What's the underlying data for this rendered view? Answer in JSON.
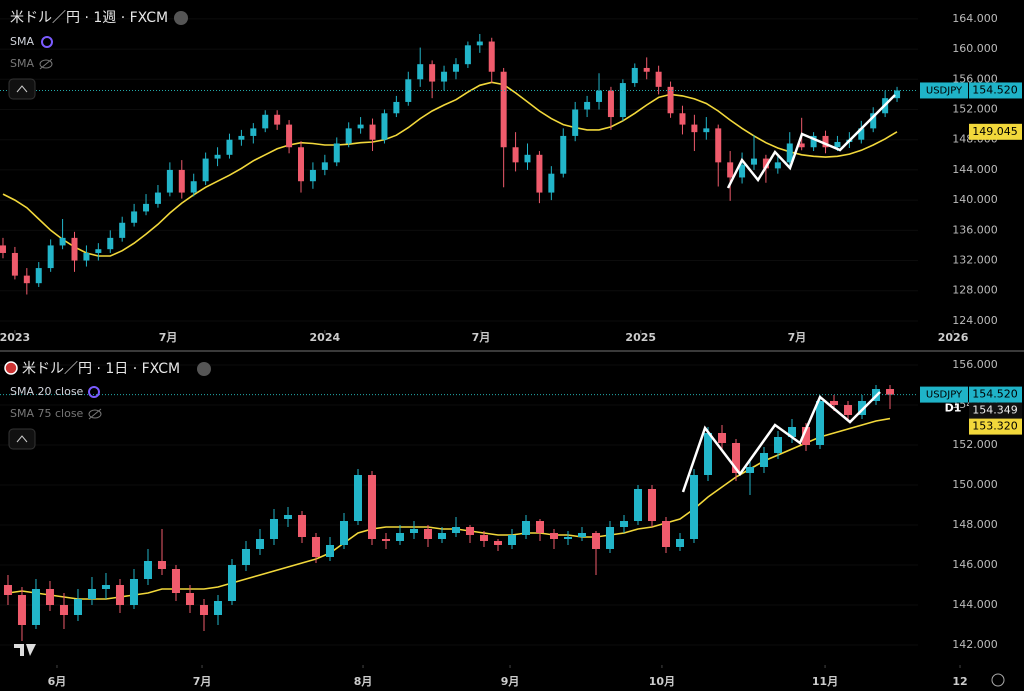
{
  "chart_data": [
    {
      "type": "candlestick",
      "title": "米ドル／円 · 1週 · FXCM",
      "up_color": "#22b5c9",
      "down_color": "#ef5b6c",
      "symbol": "USDJPY",
      "last": {
        "value": 154.52,
        "label": "154.520"
      },
      "indicators": [
        {
          "name": "SMA",
          "color": "#f2d83b",
          "label": {
            "value": 149.045,
            "label": "149.045"
          },
          "values": [
            140.8,
            140,
            139,
            137.5,
            136,
            134.8,
            133.8,
            133,
            132.6,
            132.6,
            133.3,
            134.3,
            135.5,
            136.8,
            138.3,
            139.6,
            140.7,
            141.7,
            142.5,
            143.3,
            144.2,
            145.2,
            146,
            146.8,
            147.3,
            147.6,
            147.5,
            147.3,
            147.3,
            147.4,
            147.6,
            147.7,
            148,
            148.6,
            149.6,
            150.8,
            151.8,
            152.6,
            153.3,
            154.3,
            155.2,
            155.6,
            155.3,
            154.2,
            153,
            151.8,
            150.8,
            150,
            149.6,
            149.3,
            149.3,
            149.7,
            150.5,
            151.5,
            152.6,
            153.6,
            154,
            153.8,
            153.4,
            152.8,
            151.8,
            150.6,
            149.5,
            148.5,
            147.6,
            146.9,
            146.4,
            146,
            145.8,
            145.7,
            145.8,
            146.1,
            146.6,
            147.3,
            148.1,
            149.045
          ]
        },
        {
          "name": "SMA",
          "visible": false
        }
      ],
      "ylim": [
        122.8,
        166.5
      ],
      "yticks": [
        {
          "value": 124,
          "label": "124.000"
        },
        {
          "value": 128,
          "label": "128.000"
        },
        {
          "value": 132,
          "label": "132.000"
        },
        {
          "value": 136,
          "label": "136.000"
        },
        {
          "value": 140,
          "label": "140.000"
        },
        {
          "value": 144,
          "label": "144.000"
        },
        {
          "value": 148,
          "label": "148.000"
        },
        {
          "value": 152,
          "label": "152.000"
        },
        {
          "value": 156,
          "label": "156.000"
        },
        {
          "value": 160,
          "label": "160.000"
        },
        {
          "value": 164,
          "label": "164.000"
        }
      ],
      "xlim": [
        -0.25,
        85.65
      ],
      "xticks": [
        {
          "value": 1.0,
          "label": "2023"
        },
        {
          "value": 13.85,
          "label": "7月"
        },
        {
          "value": 27.0,
          "label": "2024"
        },
        {
          "value": 40.1,
          "label": "7月"
        },
        {
          "value": 53.5,
          "label": "2025"
        },
        {
          "value": 66.6,
          "label": "7月"
        },
        {
          "value": 79.7,
          "label": "2026"
        }
      ],
      "ohlc": [
        [
          134,
          135,
          132.3,
          133
        ],
        [
          133,
          133.8,
          129.5,
          130
        ],
        [
          130,
          131,
          127.5,
          129
        ],
        [
          129,
          131.8,
          128.5,
          131
        ],
        [
          131,
          134.8,
          130.5,
          134
        ],
        [
          134,
          137.5,
          133.5,
          135
        ],
        [
          135,
          135.8,
          130.5,
          132
        ],
        [
          132,
          134,
          131.2,
          133
        ],
        [
          133,
          134.3,
          132,
          133.5
        ],
        [
          133.5,
          136,
          133,
          135
        ],
        [
          135,
          137.8,
          134.5,
          137
        ],
        [
          137,
          139.5,
          136.5,
          138.5
        ],
        [
          138.5,
          140.8,
          138,
          139.5
        ],
        [
          139.5,
          142,
          139,
          141
        ],
        [
          141,
          145,
          140.5,
          144
        ],
        [
          144,
          145.3,
          140.2,
          141
        ],
        [
          141,
          143.5,
          140.5,
          142.5
        ],
        [
          142.5,
          146.3,
          142,
          145.5
        ],
        [
          145.5,
          147,
          144.5,
          146
        ],
        [
          146,
          148.8,
          145.5,
          148
        ],
        [
          148,
          149.3,
          147.2,
          148.5
        ],
        [
          148.5,
          150.2,
          147.5,
          149.5
        ],
        [
          149.5,
          151.9,
          149,
          151.3
        ],
        [
          151.3,
          151.9,
          149.3,
          150
        ],
        [
          150,
          150.6,
          146.2,
          147
        ],
        [
          147,
          147.8,
          141,
          142.5
        ],
        [
          142.5,
          145,
          141.5,
          144
        ],
        [
          144,
          146,
          143.3,
          145
        ],
        [
          145,
          148.3,
          144.5,
          147.5
        ],
        [
          147.5,
          150.3,
          147,
          149.5
        ],
        [
          149.5,
          151,
          148.8,
          150
        ],
        [
          150,
          150.8,
          146.5,
          148
        ],
        [
          148,
          152,
          147.5,
          151.5
        ],
        [
          151.5,
          153.8,
          151,
          153
        ],
        [
          153,
          157,
          152.5,
          156
        ],
        [
          156,
          160.2,
          155,
          158
        ],
        [
          158,
          158.5,
          153.5,
          155.7
        ],
        [
          155.7,
          157.8,
          154.5,
          157
        ],
        [
          157,
          158.8,
          156,
          158
        ],
        [
          158,
          161,
          157.5,
          160.5
        ],
        [
          160.5,
          162,
          159.5,
          161
        ],
        [
          161,
          161.5,
          155.5,
          157
        ],
        [
          157,
          157.5,
          141.7,
          147
        ],
        [
          147,
          149,
          143.8,
          145
        ],
        [
          145,
          147.5,
          144,
          146
        ],
        [
          146,
          146.5,
          139.6,
          141
        ],
        [
          141,
          144.5,
          140,
          143.5
        ],
        [
          143.5,
          149.5,
          143,
          148.5
        ],
        [
          148.5,
          153,
          147.8,
          152
        ],
        [
          152,
          153.8,
          151,
          153
        ],
        [
          153,
          156.8,
          152,
          154.5
        ],
        [
          154.5,
          155,
          149.3,
          151
        ],
        [
          151,
          156,
          150.5,
          155.5
        ],
        [
          155.5,
          158.1,
          155,
          157.5
        ],
        [
          157.5,
          158.9,
          156,
          157
        ],
        [
          157,
          157.8,
          154,
          155
        ],
        [
          155,
          155.7,
          150.9,
          151.5
        ],
        [
          151.5,
          152.5,
          148.7,
          150
        ],
        [
          150,
          151.3,
          146.5,
          149
        ],
        [
          149,
          151,
          148,
          149.5
        ],
        [
          149.5,
          150,
          141.8,
          145
        ],
        [
          145,
          146.5,
          139.9,
          143
        ],
        [
          143,
          146.3,
          142.2,
          144.7
        ],
        [
          144.7,
          148.6,
          144,
          145.5
        ],
        [
          145.5,
          146,
          142.3,
          144.2
        ],
        [
          144.2,
          146,
          143.5,
          145
        ],
        [
          145,
          149,
          144.5,
          147.5
        ],
        [
          147.5,
          150.9,
          146.6,
          147
        ],
        [
          147,
          149,
          146.5,
          148.5
        ],
        [
          148.5,
          149.2,
          146.2,
          147
        ],
        [
          147,
          148.5,
          146.5,
          147.7
        ],
        [
          147.7,
          149,
          146.9,
          148
        ],
        [
          148,
          150.5,
          147.5,
          149.5
        ],
        [
          149.5,
          152.3,
          149,
          151.5
        ],
        [
          151.5,
          154.5,
          151,
          153.5
        ],
        [
          153.5,
          155,
          153,
          154.52
        ]
      ]
    },
    {
      "type": "candlestick",
      "title": "米ドル／円 · 1日 · FXCM",
      "up_color": "#22b5c9",
      "down_color": "#ef5b6c",
      "symbol": "USDJPY",
      "resolution": "D1",
      "last": {
        "value": 154.52,
        "label": "154.520"
      },
      "marker": {
        "value": 154.349,
        "label": "154.349"
      },
      "indicators": [
        {
          "name": "SMA 20 close",
          "color": "#f2d83b",
          "label": {
            "value": 153.32,
            "label": "153.320"
          },
          "values": [
            144.6,
            144.7,
            144.6,
            144.5,
            144.4,
            144.3,
            144.3,
            144.3,
            144.4,
            144.5,
            144.6,
            144.8,
            144.8,
            144.8,
            144.8,
            144.9,
            145.1,
            145.3,
            145.5,
            145.7,
            145.9,
            146.1,
            146.3,
            146.6,
            147.1,
            147.6,
            147.8,
            147.9,
            147.9,
            147.9,
            147.9,
            147.8,
            147.8,
            147.7,
            147.6,
            147.5,
            147.5,
            147.6,
            147.6,
            147.5,
            147.5,
            147.4,
            147.4,
            147.5,
            147.6,
            147.8,
            147.9,
            148.1,
            148.3,
            148.8,
            149.4,
            149.9,
            150.4,
            150.8,
            151.2,
            151.5,
            151.8,
            152.1,
            152.4,
            152.6,
            152.8,
            153,
            153.2,
            153.32
          ]
        },
        {
          "name": "SMA 75 close",
          "visible": false
        }
      ],
      "ylim": [
        141.0,
        156.65
      ],
      "yticks": [
        {
          "value": 142,
          "label": "142.000"
        },
        {
          "value": 144,
          "label": "144.000"
        },
        {
          "value": 146,
          "label": "146.000"
        },
        {
          "value": 148,
          "label": "148.000"
        },
        {
          "value": 150,
          "label": "150.000"
        },
        {
          "value": 152,
          "label": "152.000"
        },
        {
          "value": 154,
          "label": "154.000"
        },
        {
          "value": 156,
          "label": "156.000"
        }
      ],
      "xlim": [
        -0.57,
        72.57
      ],
      "xticks": [
        {
          "value": 3.5,
          "label": "6月"
        },
        {
          "value": 13.86,
          "label": "7月"
        },
        {
          "value": 25.36,
          "label": "8月"
        },
        {
          "value": 35.86,
          "label": "9月"
        },
        {
          "value": 46.71,
          "label": "10月"
        },
        {
          "value": 58.36,
          "label": "11月"
        },
        {
          "value": 68.0,
          "label": "12"
        }
      ],
      "ohlc": [
        [
          145,
          145.5,
          144,
          144.5
        ],
        [
          144.5,
          144.9,
          142.2,
          143
        ],
        [
          143,
          145.3,
          142.8,
          144.8
        ],
        [
          144.8,
          145.2,
          143.7,
          144
        ],
        [
          144,
          144.6,
          142.8,
          143.5
        ],
        [
          143.5,
          144.8,
          143.2,
          144.3
        ],
        [
          144.3,
          145.4,
          144,
          144.8
        ],
        [
          144.8,
          145.6,
          144.3,
          145
        ],
        [
          145,
          145.3,
          143.6,
          144
        ],
        [
          144,
          145.8,
          143.8,
          145.3
        ],
        [
          145.3,
          146.8,
          145,
          146.2
        ],
        [
          146.2,
          147.8,
          145.5,
          145.8
        ],
        [
          145.8,
          146,
          144.2,
          144.6
        ],
        [
          144.6,
          145,
          143.6,
          144
        ],
        [
          144,
          144.3,
          142.7,
          143.5
        ],
        [
          143.5,
          144.5,
          143,
          144.2
        ],
        [
          144.2,
          146.3,
          144,
          146
        ],
        [
          146,
          147.2,
          145.7,
          146.8
        ],
        [
          146.8,
          147.8,
          146.5,
          147.3
        ],
        [
          147.3,
          148.8,
          147,
          148.3
        ],
        [
          148.3,
          148.9,
          147.9,
          148.5
        ],
        [
          148.5,
          148.7,
          147.1,
          147.4
        ],
        [
          147.4,
          147.6,
          146.1,
          146.4
        ],
        [
          146.4,
          147.4,
          146.2,
          147
        ],
        [
          147,
          148.6,
          146.8,
          148.2
        ],
        [
          148.2,
          150.8,
          148,
          150.5
        ],
        [
          150.5,
          150.7,
          147,
          147.3
        ],
        [
          147.3,
          147.6,
          146.8,
          147.2
        ],
        [
          147.2,
          148,
          147,
          147.6
        ],
        [
          147.6,
          148.2,
          147.3,
          147.8
        ],
        [
          147.8,
          148,
          146.9,
          147.3
        ],
        [
          147.3,
          147.9,
          147.1,
          147.6
        ],
        [
          147.6,
          148.4,
          147.4,
          147.9
        ],
        [
          147.9,
          148,
          147.1,
          147.5
        ],
        [
          147.5,
          147.7,
          146.9,
          147.2
        ],
        [
          147.2,
          147.3,
          146.7,
          147
        ],
        [
          147,
          147.8,
          146.8,
          147.5
        ],
        [
          147.5,
          148.5,
          147.3,
          148.2
        ],
        [
          148.2,
          148.3,
          147.2,
          147.6
        ],
        [
          147.6,
          147.8,
          146.8,
          147.3
        ],
        [
          147.3,
          147.7,
          147,
          147.4
        ],
        [
          147.4,
          147.9,
          147.2,
          147.6
        ],
        [
          147.6,
          147.7,
          145.5,
          146.8
        ],
        [
          146.8,
          148.2,
          146.6,
          147.9
        ],
        [
          147.9,
          148.5,
          147.6,
          148.2
        ],
        [
          148.2,
          150,
          148,
          149.8
        ],
        [
          149.8,
          150,
          147.9,
          148.2
        ],
        [
          148.2,
          148.4,
          146.6,
          146.9
        ],
        [
          146.9,
          147.6,
          146.7,
          147.3
        ],
        [
          147.3,
          150.8,
          147.1,
          150.5
        ],
        [
          150.5,
          152.9,
          150.2,
          152.6
        ],
        [
          152.6,
          153,
          151.7,
          152.1
        ],
        [
          152.1,
          152.3,
          150.2,
          150.6
        ],
        [
          150.6,
          151.3,
          149.5,
          150.9
        ],
        [
          150.9,
          151.9,
          150.6,
          151.6
        ],
        [
          151.6,
          152.7,
          151.3,
          152.4
        ],
        [
          152.4,
          153.3,
          152.1,
          152.9
        ],
        [
          152.9,
          153.1,
          151.7,
          152
        ],
        [
          152,
          154.5,
          151.8,
          154.2
        ],
        [
          154.2,
          154.5,
          153.7,
          154
        ],
        [
          154,
          154.2,
          153.2,
          153.5
        ],
        [
          153.5,
          154.5,
          153.3,
          154.2
        ],
        [
          154.2,
          155,
          154,
          154.8
        ],
        [
          154.8,
          155,
          153.8,
          154.52
        ]
      ]
    }
  ]
}
